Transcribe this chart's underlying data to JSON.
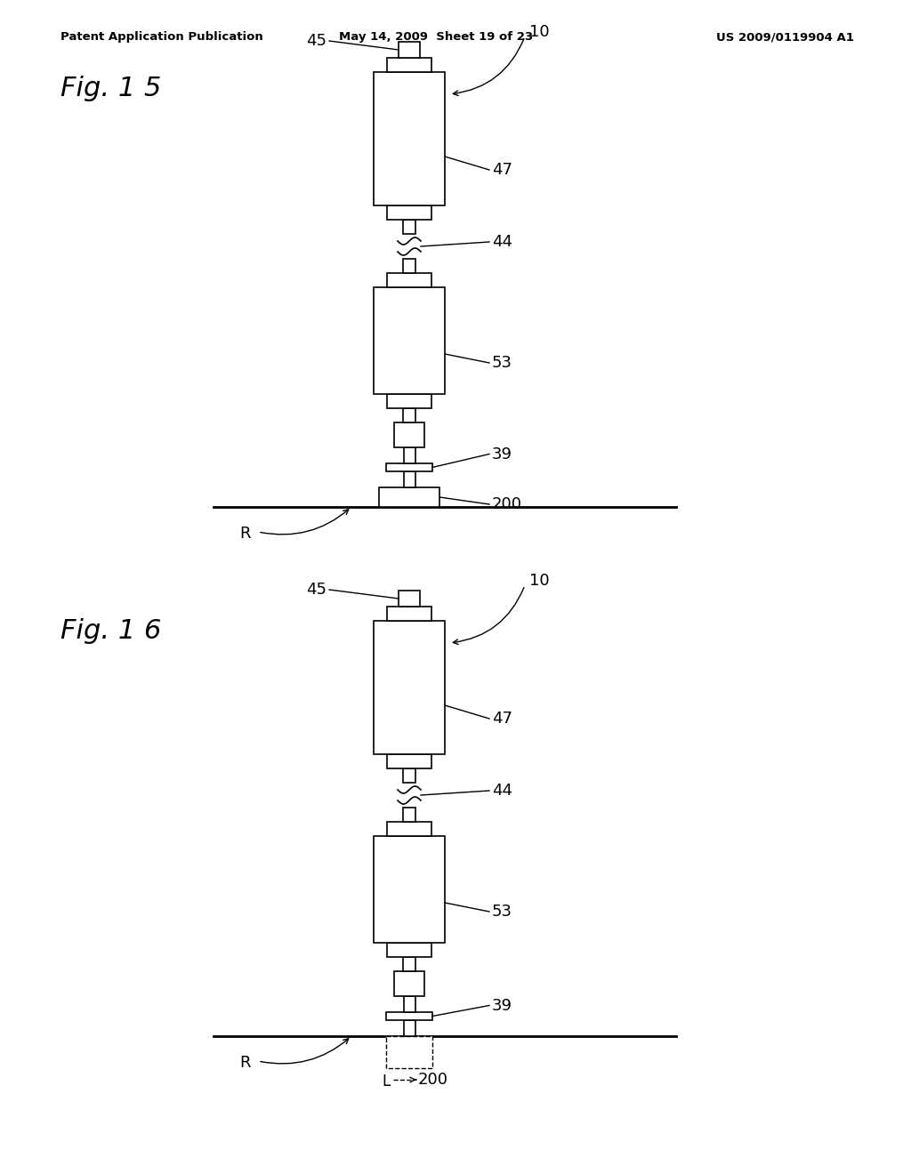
{
  "bg_color": "#ffffff",
  "header_left": "Patent Application Publication",
  "header_mid": "May 14, 2009  Sheet 19 of 23",
  "header_right": "US 2009/0119904 A1",
  "fig1_title": "Fig. 1 5",
  "fig2_title": "Fig. 1 6"
}
